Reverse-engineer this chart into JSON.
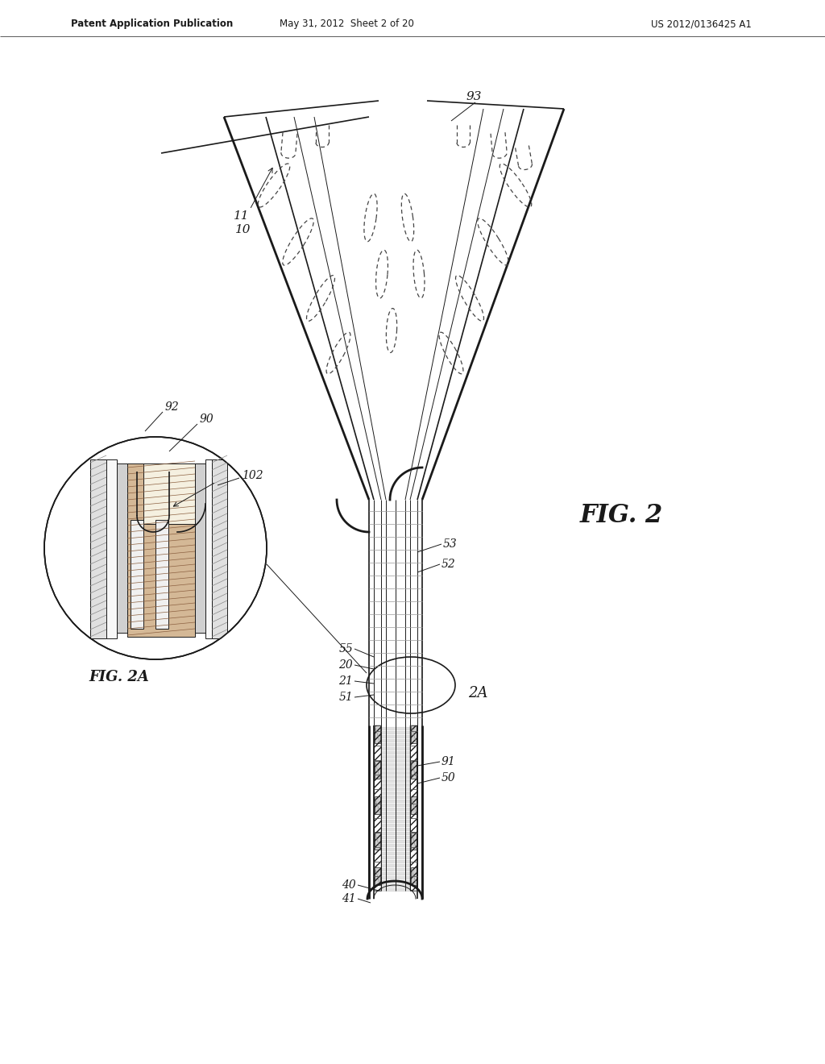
{
  "bg_color": "#ffffff",
  "line_color": "#1a1a1a",
  "header_left": "Patent Application Publication",
  "header_mid": "May 31, 2012  Sheet 2 of 20",
  "header_right": "US 2012/0136425 A1",
  "hatch_color": "#aaaaaa",
  "gray_fill": "#d8d8d8",
  "tan_fill": "#c8b090"
}
